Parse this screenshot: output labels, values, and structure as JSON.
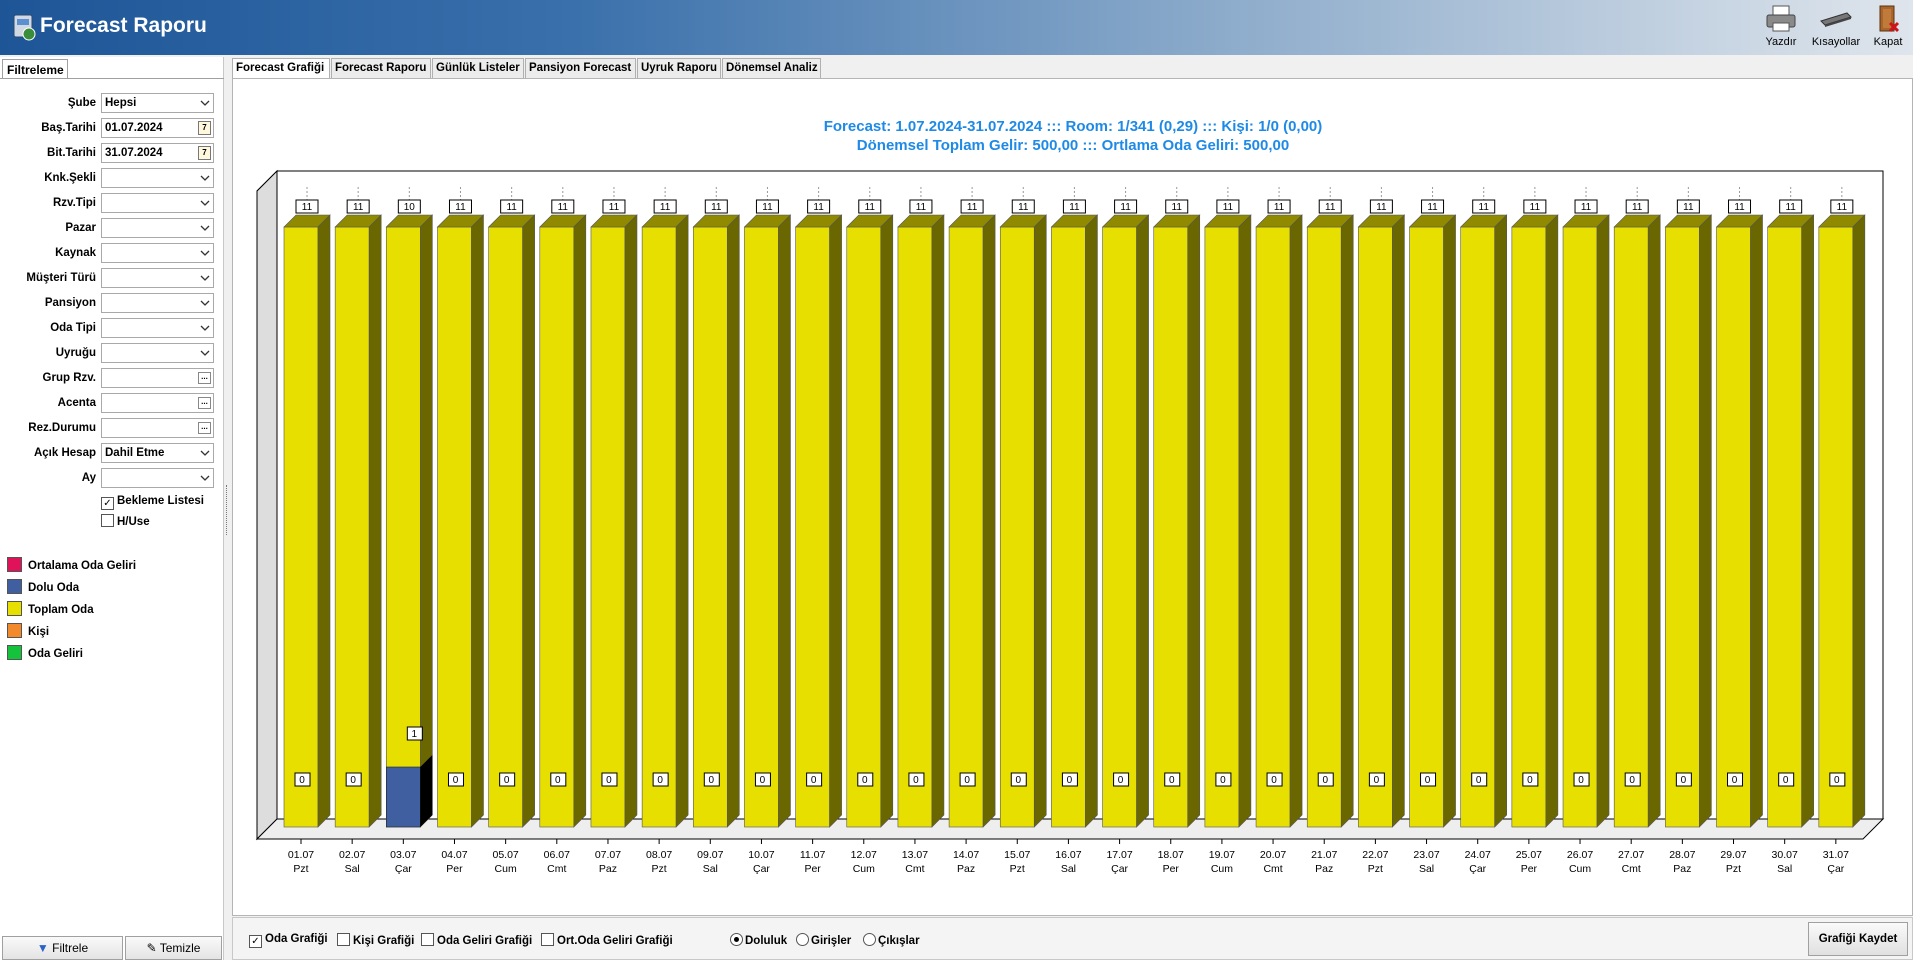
{
  "app": {
    "title": "Forecast Raporu"
  },
  "toolbar": {
    "print": "Yazdır",
    "shortcuts": "Kısayollar",
    "close": "Kapat"
  },
  "left": {
    "tab": "Filtreleme",
    "filters": [
      {
        "label": "Şube",
        "value": "Hepsi",
        "kind": "dropdown"
      },
      {
        "label": "Baş.Tarihi",
        "value": "01.07.2024",
        "kind": "date"
      },
      {
        "label": "Bit.Tarihi",
        "value": "31.07.2024",
        "kind": "date"
      },
      {
        "label": "Knk.Şekli",
        "value": "",
        "kind": "dropdown"
      },
      {
        "label": "Rzv.Tipi",
        "value": "",
        "kind": "dropdown"
      },
      {
        "label": "Pazar",
        "value": "",
        "kind": "dropdown"
      },
      {
        "label": "Kaynak",
        "value": "",
        "kind": "dropdown"
      },
      {
        "label": "Müşteri Türü",
        "value": "",
        "kind": "dropdown"
      },
      {
        "label": "Pansiyon",
        "value": "",
        "kind": "dropdown"
      },
      {
        "label": "Oda Tipi",
        "value": "",
        "kind": "dropdown"
      },
      {
        "label": "Uyruğu",
        "value": "",
        "kind": "dropdown"
      },
      {
        "label": "Grup Rzv.",
        "value": "",
        "kind": "ellipsis"
      },
      {
        "label": "Acenta",
        "value": "",
        "kind": "ellipsis"
      },
      {
        "label": "Rez.Durumu",
        "value": "",
        "kind": "ellipsis"
      },
      {
        "label": "Açık Hesap",
        "value": "Dahil Etme",
        "kind": "dropdown"
      },
      {
        "label": "Ay",
        "value": "",
        "kind": "dropdown"
      }
    ],
    "waitlist": {
      "label": "Bekleme Listesi",
      "checked": true
    },
    "huse": {
      "label": "H/Use",
      "checked": false
    },
    "legend": [
      {
        "label": "Ortalama Oda Geliri",
        "color": "#e0135a"
      },
      {
        "label": "Dolu Oda",
        "color": "#3f5fa0"
      },
      {
        "label": "Toplam Oda",
        "color": "#e6df00"
      },
      {
        "label": "Kişi",
        "color": "#f28a2b"
      },
      {
        "label": "Oda Geliri",
        "color": "#14c23c"
      }
    ],
    "filter_btn": "Filtrele",
    "clear_btn": "Temizle"
  },
  "tabs": [
    "Forecast Grafiği",
    "Forecast Raporu",
    "Günlük Listeler",
    "Pansiyon Forecast",
    "Uyruk Raporu",
    "Dönemsel Analiz"
  ],
  "bottom": {
    "checks": [
      {
        "label": "Oda Grafiği",
        "checked": true
      },
      {
        "label": "Kişi Grafiği",
        "checked": false
      },
      {
        "label": "Oda Geliri Grafiği",
        "checked": false
      },
      {
        "label": "Ort.Oda Geliri Grafiği",
        "checked": false
      }
    ],
    "radios": [
      {
        "label": "Doluluk",
        "selected": true
      },
      {
        "label": "Girişler",
        "selected": false
      },
      {
        "label": "Çıkışlar",
        "selected": false
      }
    ],
    "save_btn": "Grafiği Kaydet"
  },
  "chart_data": {
    "type": "bar",
    "title": "Forecast: 1.07.2024-31.07.2024  :::  Room: 1/341 (0,29)  :::  Kişi: 1/0 (0,00)",
    "subtitle": "Dönemsel Toplam Gelir: 500,00  :::  Ortlama Oda Geliri: 500,00",
    "categories": [
      "01.07",
      "02.07",
      "03.07",
      "04.07",
      "05.07",
      "06.07",
      "07.07",
      "08.07",
      "09.07",
      "10.07",
      "11.07",
      "12.07",
      "13.07",
      "14.07",
      "15.07",
      "16.07",
      "17.07",
      "18.07",
      "19.07",
      "20.07",
      "21.07",
      "22.07",
      "23.07",
      "24.07",
      "25.07",
      "26.07",
      "27.07",
      "28.07",
      "29.07",
      "30.07",
      "31.07"
    ],
    "days": [
      "Pzt",
      "Sal",
      "Çar",
      "Per",
      "Cum",
      "Cmt",
      "Paz",
      "Pzt",
      "Sal",
      "Çar",
      "Per",
      "Cum",
      "Cmt",
      "Paz",
      "Pzt",
      "Sal",
      "Çar",
      "Per",
      "Cum",
      "Cmt",
      "Paz",
      "Pzt",
      "Sal",
      "Çar",
      "Per",
      "Cum",
      "Cmt",
      "Paz",
      "Pzt",
      "Sal",
      "Çar"
    ],
    "series": [
      {
        "name": "Toplam Oda",
        "color": "#e6df00",
        "values": [
          11,
          11,
          10,
          11,
          11,
          11,
          11,
          11,
          11,
          11,
          11,
          11,
          11,
          11,
          11,
          11,
          11,
          11,
          11,
          11,
          11,
          11,
          11,
          11,
          11,
          11,
          11,
          11,
          11,
          11,
          11
        ]
      },
      {
        "name": "Dolu Oda",
        "color": "#3f5fa0",
        "values": [
          0,
          0,
          1,
          0,
          0,
          0,
          0,
          0,
          0,
          0,
          0,
          0,
          0,
          0,
          0,
          0,
          0,
          0,
          0,
          0,
          0,
          0,
          0,
          0,
          0,
          0,
          0,
          0,
          0,
          0,
          0
        ]
      }
    ],
    "ylim": [
      0,
      11
    ]
  }
}
